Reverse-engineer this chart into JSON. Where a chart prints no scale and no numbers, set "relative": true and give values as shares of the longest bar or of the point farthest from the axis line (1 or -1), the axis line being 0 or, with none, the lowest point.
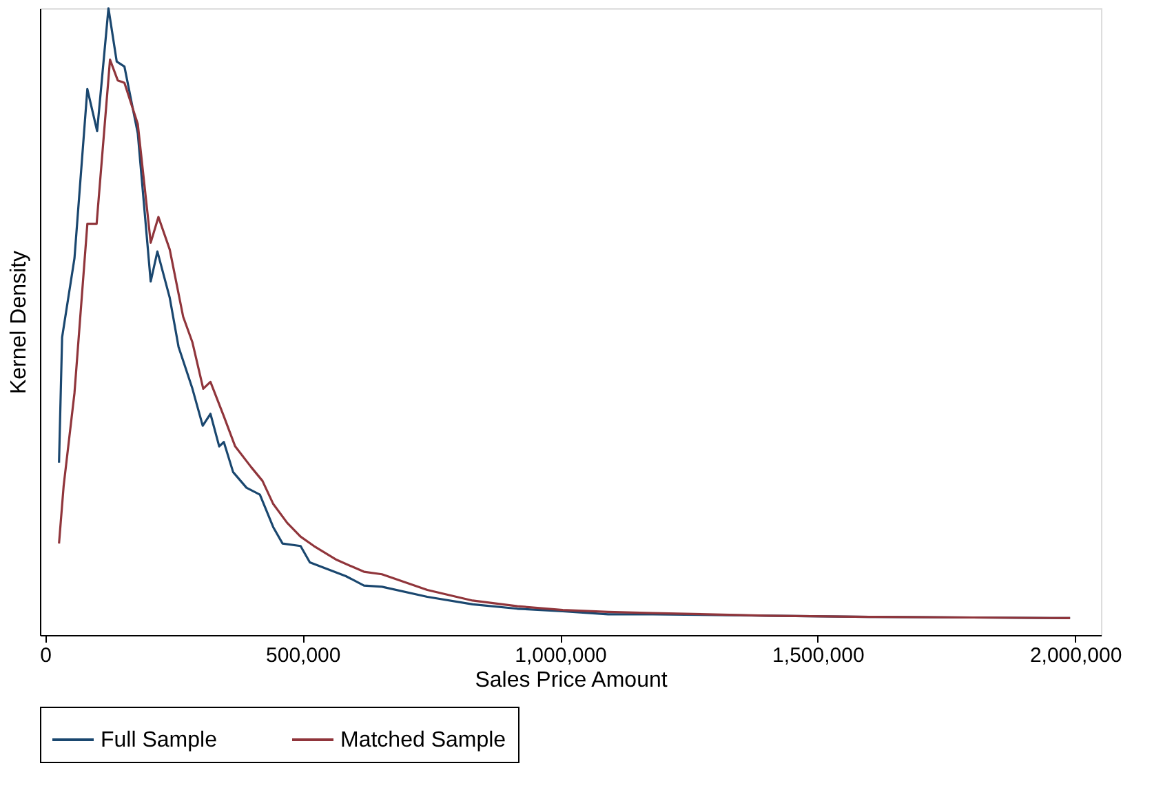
{
  "chart_data": {
    "type": "line",
    "relative": true,
    "xlabel": "Sales Price Amount",
    "ylabel": "Kernel Density",
    "xlim": [
      -10000,
      2050000
    ],
    "xticks": [
      0,
      {
        "value": 500000,
        "label": "500,000"
      },
      {
        "value": 1000000,
        "label": "1,000,000"
      },
      {
        "value": 1500000,
        "label": "1,500,000"
      },
      {
        "value": 2000000,
        "label": "2,000,000"
      }
    ],
    "grid": false,
    "legend": "bottom",
    "line_style": "solid",
    "marker": "none",
    "series": [
      {
        "name": "Full Sample",
        "color": "#1a476f",
        "x": [
          27000,
          33000,
          57000,
          82000,
          101000,
          123000,
          139000,
          154000,
          180000,
          205000,
          218000,
          242000,
          259000,
          286000,
          306000,
          321000,
          338000,
          347000,
          365000,
          391000,
          417000,
          443000,
          461000,
          496000,
          514000,
          549000,
          584000,
          619000,
          654000,
          742000,
          830000,
          917000,
          1005000,
          1093000,
          1180000,
          1400000,
          1600000,
          1800000,
          1990000
        ],
        "values": [
          0.275,
          0.475,
          0.601,
          0.871,
          0.804,
          1.0,
          0.915,
          0.907,
          0.8,
          0.564,
          0.612,
          0.538,
          0.46,
          0.393,
          0.334,
          0.353,
          0.301,
          0.308,
          0.26,
          0.235,
          0.224,
          0.172,
          0.146,
          0.142,
          0.116,
          0.105,
          0.094,
          0.079,
          0.077,
          0.061,
          0.049,
          0.042,
          0.038,
          0.033,
          0.033,
          0.031,
          0.029,
          0.028,
          0.027
        ]
      },
      {
        "name": "Matched Sample",
        "color": "#90353b",
        "x": [
          27000,
          36000,
          57000,
          82000,
          100000,
          126000,
          141000,
          154000,
          180000,
          205000,
          220000,
          242000,
          268000,
          286000,
          307000,
          321000,
          347000,
          369000,
          400000,
          422000,
          443000,
          470000,
          496000,
          522000,
          566000,
          619000,
          654000,
          742000,
          830000,
          917000,
          1005000,
          1093000,
          1180000,
          1400000,
          1600000,
          1800000,
          1990000
        ],
        "values": [
          0.146,
          0.238,
          0.386,
          0.656,
          0.656,
          0.918,
          0.885,
          0.881,
          0.815,
          0.626,
          0.667,
          0.615,
          0.508,
          0.467,
          0.393,
          0.404,
          0.349,
          0.301,
          0.268,
          0.246,
          0.209,
          0.179,
          0.157,
          0.142,
          0.12,
          0.101,
          0.097,
          0.072,
          0.055,
          0.046,
          0.04,
          0.037,
          0.035,
          0.031,
          0.029,
          0.028,
          0.027
        ]
      }
    ]
  }
}
